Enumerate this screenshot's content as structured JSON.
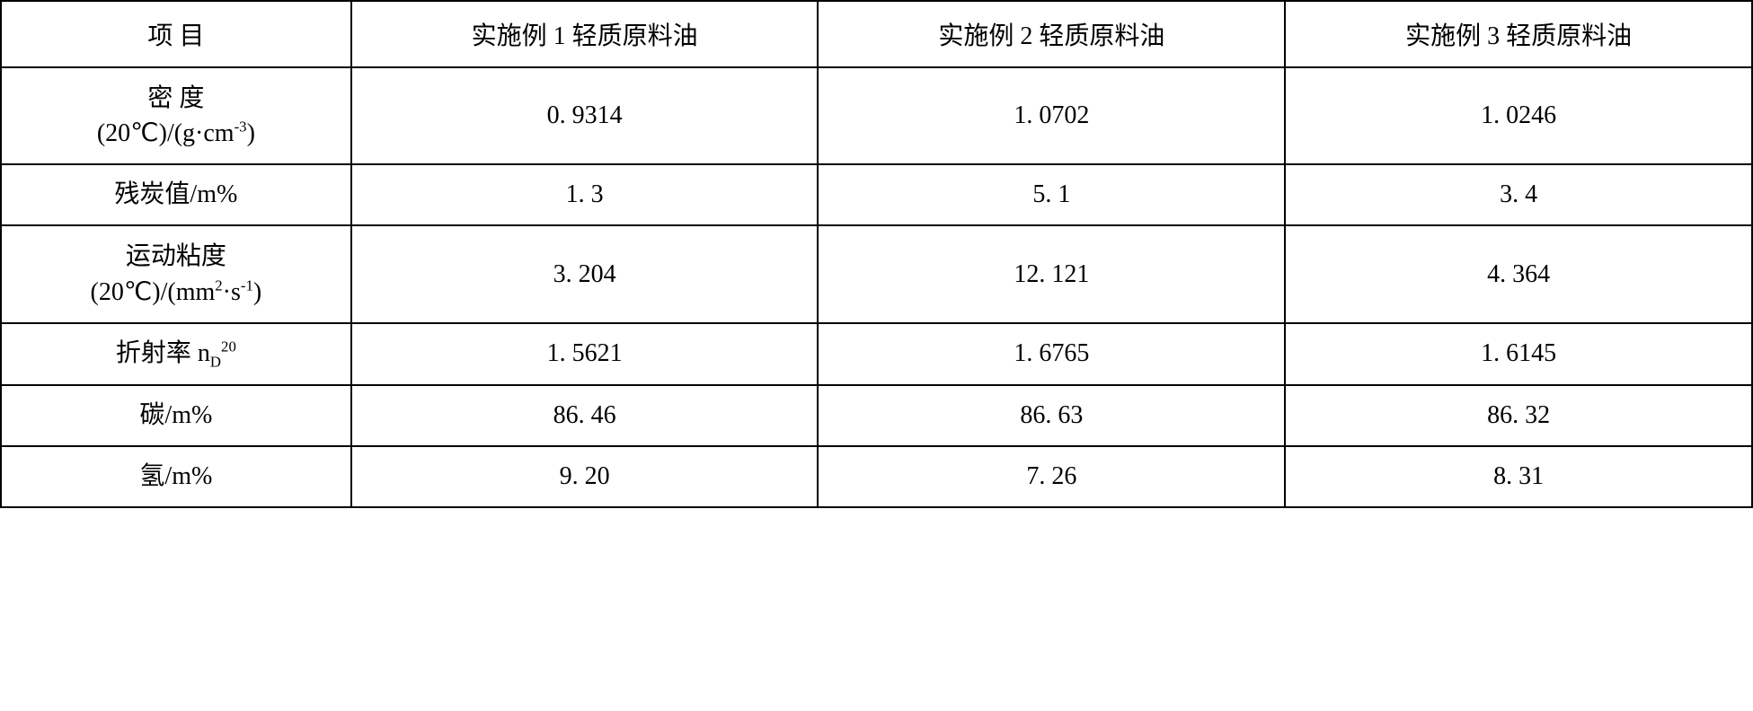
{
  "table": {
    "type": "table",
    "columns": [
      {
        "key": "label",
        "header": "项 目",
        "width": "20%",
        "align": "center"
      },
      {
        "key": "ex1",
        "header": "实施例 1 轻质原料油",
        "width": "26.67%",
        "align": "center"
      },
      {
        "key": "ex2",
        "header": "实施例 2 轻质原料油",
        "width": "26.67%",
        "align": "center"
      },
      {
        "key": "ex3",
        "header": "实施例 3 轻质原料油",
        "width": "26.67%",
        "align": "center"
      }
    ],
    "rows": [
      {
        "label_line1": "密 度",
        "label_line2_prefix": "(20℃)/(g·cm",
        "label_line2_sup": "-3",
        "label_line2_suffix": ")",
        "ex1": "0. 9314",
        "ex2": "1. 0702",
        "ex3": "1. 0246",
        "two_line": true
      },
      {
        "label": "残炭值/m%",
        "ex1": "1. 3",
        "ex2": "5. 1",
        "ex3": "3. 4",
        "two_line": false
      },
      {
        "label_line1": "运动粘度",
        "label_line2_prefix": "(20℃)/(mm",
        "label_line2_sup": "2",
        "label_line2_mid": "·s",
        "label_line2_sup2": "-1",
        "label_line2_suffix": ")",
        "ex1": "3. 204",
        "ex2": "12. 121",
        "ex3": "4. 364",
        "two_line": true
      },
      {
        "label_prefix": "折射率 n",
        "label_sub": "D",
        "label_sup": "20",
        "ex1": "1. 5621",
        "ex2": "1. 6765",
        "ex3": "1. 6145",
        "two_line": false,
        "has_subscript": true
      },
      {
        "label": "碳/m%",
        "ex1": "86. 46",
        "ex2": "86. 63",
        "ex3": "86. 32",
        "two_line": false
      },
      {
        "label": "氢/m%",
        "ex1": "9. 20",
        "ex2": "7. 26",
        "ex3": "8. 31",
        "two_line": false
      }
    ],
    "border_color": "#000000",
    "border_width": 2,
    "background_color": "#ffffff",
    "text_color": "#000000",
    "font_size": 28,
    "font_family": "SimSun"
  }
}
